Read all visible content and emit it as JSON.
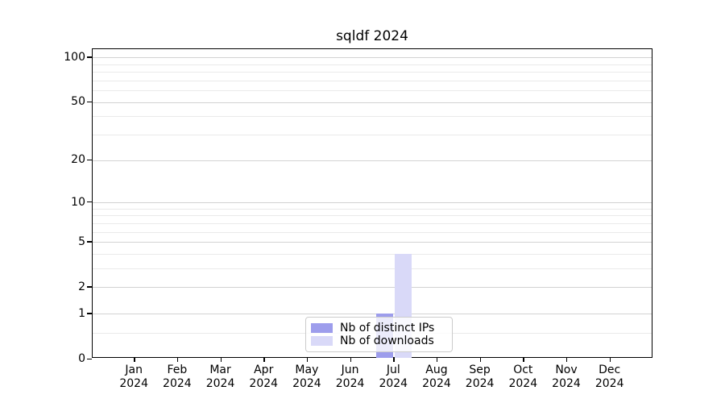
{
  "title": "sqldf 2024",
  "chart_data": {
    "type": "bar",
    "title": "sqldf 2024",
    "categories": [
      "Jan 2024",
      "Feb 2024",
      "Mar 2024",
      "Apr 2024",
      "May 2024",
      "Jun 2024",
      "Jul 2024",
      "Aug 2024",
      "Sep 2024",
      "Oct 2024",
      "Nov 2024",
      "Dec 2024"
    ],
    "x_months": [
      "Jan",
      "Feb",
      "Mar",
      "Apr",
      "May",
      "Jun",
      "Jul",
      "Aug",
      "Sep",
      "Oct",
      "Nov",
      "Dec"
    ],
    "x_year": "2024",
    "series": [
      {
        "name": "Nb of distinct IPs",
        "color": "#9d9dec",
        "values": [
          0,
          0,
          0,
          0,
          0,
          0,
          1,
          0,
          0,
          0,
          0,
          0
        ]
      },
      {
        "name": "Nb of downloads",
        "color": "#d9d9f8",
        "values": [
          0,
          0,
          0,
          0,
          0,
          0,
          4,
          0,
          0,
          0,
          0,
          0
        ]
      }
    ],
    "xlabel": "",
    "ylabel": "",
    "yscale": "log1p",
    "ylim": [
      0,
      100
    ],
    "ytick_values": [
      100,
      50,
      20,
      10,
      5,
      2,
      1,
      0
    ],
    "ytick_labels": [
      "100",
      "50",
      "20",
      "10",
      "5",
      "2",
      "1",
      "0"
    ],
    "major_gridline_values": [
      1,
      2,
      5,
      10,
      20,
      50,
      100
    ],
    "minor_gridline_values": [
      0.5,
      3,
      4,
      6,
      7,
      8,
      9,
      30,
      40,
      60,
      70,
      80,
      90
    ],
    "grid": "horizontal",
    "legend_position": "lower center"
  },
  "colors": {
    "distinct_ips_bar": "#9d9dec",
    "downloads_bar": "#d9d9f8",
    "major_grid": "#d2d2d2",
    "minor_grid": "#eaeaea",
    "spine": "#000000",
    "legend_border": "#cccccc"
  }
}
